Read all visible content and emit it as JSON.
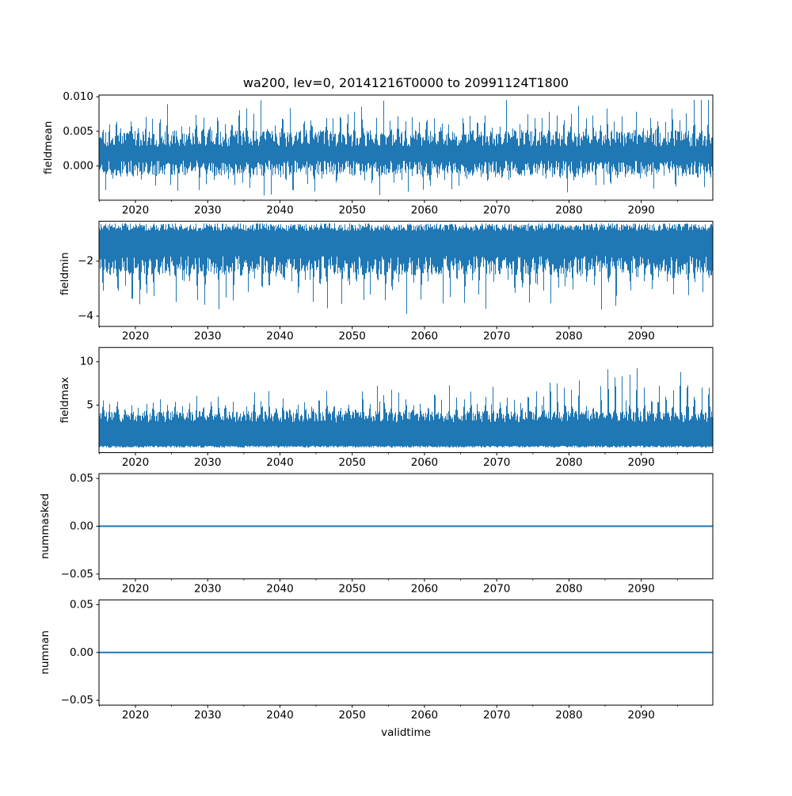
{
  "figure": {
    "title": "wa200, lev=0, 20141216T0000 to 20991124T1800",
    "xlabel": "validtime",
    "line_color": "#1f77b4",
    "axis_color": "#000000",
    "background": "#ffffff",
    "xlim": [
      2014.958,
      2099.9
    ],
    "xticks": [
      {
        "value": 2020,
        "label": "2020"
      },
      {
        "value": 2030,
        "label": "2030"
      },
      {
        "value": 2040,
        "label": "2040"
      },
      {
        "value": 2050,
        "label": "2050"
      },
      {
        "value": 2060,
        "label": "2060"
      },
      {
        "value": 2070,
        "label": "2070"
      },
      {
        "value": 2080,
        "label": "2080"
      },
      {
        "value": 2090,
        "label": "2090"
      }
    ],
    "minor_xticks": [
      2015,
      2025,
      2035,
      2045,
      2055,
      2065,
      2075,
      2085,
      2095
    ]
  },
  "chart_data": [
    {
      "type": "line",
      "ylabel": "fieldmean",
      "ylim": [
        -0.00494,
        0.01024
      ],
      "yticks": [
        {
          "value": 0.01,
          "label": "0.010"
        },
        {
          "value": 0.005,
          "label": "0.005"
        },
        {
          "value": 0.0,
          "label": "0.000"
        }
      ],
      "series": {
        "kind": "noise",
        "seed": 11,
        "top_base": 0.0028,
        "top_rand": 0.0024,
        "bot_base": 0.0008,
        "bot_rand": 0.0022,
        "peak_phase": 0.35,
        "peak_width": 0.1,
        "peak_base": 0.0006,
        "peak_rand": 0.0052,
        "peak_growth": 0.0004,
        "dip_phase": 0.8,
        "dip_width": 0.09,
        "dip_base": 0.0003,
        "dip_rand": 0.0036,
        "rare_prob": 0.012,
        "rare_top": 0.0012,
        "rare_bot": 0.001,
        "clamp": [
          -0.00425,
          0.00955
        ]
      }
    },
    {
      "type": "line",
      "ylabel": "fieldmin",
      "ylim": [
        -4.374,
        -0.546
      ],
      "yticks": [
        {
          "value": -2,
          "label": "−2"
        },
        {
          "value": -4,
          "label": "−4"
        }
      ],
      "series": {
        "kind": "noise",
        "seed": 22,
        "top_base": -0.62,
        "top_rand": -0.28,
        "bot_base": -1.8,
        "bot_rand": 0.7,
        "peak_phase": 0.5,
        "peak_width": 0.1,
        "peak_base": 0,
        "peak_rand": 0,
        "peak_growth": 0,
        "dip_phase": 0.55,
        "dip_width": 0.13,
        "dip_base": 0.25,
        "dip_rand": 1.4,
        "rare_prob": 0.01,
        "rare_top": 0,
        "rare_bot": 0.6,
        "clamp": [
          -4.2,
          -0.55
        ]
      }
    },
    {
      "type": "line",
      "ylabel": "fieldmax",
      "ylim": [
        -0.5,
        11.65
      ],
      "yticks": [
        {
          "value": 10,
          "label": "10"
        },
        {
          "value": 5,
          "label": "5"
        }
      ],
      "series": {
        "kind": "noise",
        "seed": 33,
        "top_base": 3.0,
        "top_rand": 1.3,
        "bot_base": 0.3,
        "bot_rand": 0.22,
        "peak_phase": 0.45,
        "peak_width": 0.12,
        "peak_base": 0.6,
        "peak_rand": 2.0,
        "peak_growth": 4.8,
        "dip_phase": 0.5,
        "dip_width": 0.1,
        "dip_base": 0,
        "dip_rand": 0,
        "rare_prob": 0.012,
        "rare_top": 1.4,
        "rare_bot": 0,
        "clamp": [
          0.05,
          11.1
        ]
      }
    },
    {
      "type": "line",
      "ylabel": "nummasked",
      "ylim": [
        -0.055,
        0.055
      ],
      "yticks": [
        {
          "value": 0.05,
          "label": "0.05"
        },
        {
          "value": 0.0,
          "label": "0.00"
        },
        {
          "value": -0.05,
          "label": "−0.05"
        }
      ],
      "series": {
        "kind": "constant",
        "value": 0.0
      }
    },
    {
      "type": "line",
      "ylabel": "numnan",
      "ylim": [
        -0.055,
        0.055
      ],
      "yticks": [
        {
          "value": 0.05,
          "label": "0.05"
        },
        {
          "value": 0.0,
          "label": "0.00"
        },
        {
          "value": -0.05,
          "label": "−0.05"
        }
      ],
      "series": {
        "kind": "constant",
        "value": 0.0
      }
    }
  ]
}
